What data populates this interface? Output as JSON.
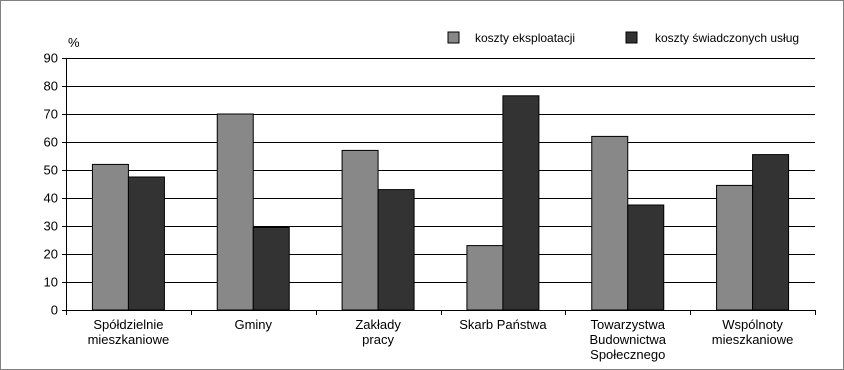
{
  "chart_data": {
    "type": "bar",
    "ylabel": "%",
    "ylim": [
      0,
      90
    ],
    "yticks": [
      0,
      10,
      20,
      30,
      40,
      50,
      60,
      70,
      80,
      90
    ],
    "grid": true,
    "legend_position": "top-right",
    "categories": [
      [
        "Spółdzielnie",
        "mieszkaniowe"
      ],
      [
        "Gminy"
      ],
      [
        "Zakłady",
        "pracy"
      ],
      [
        "Skarb Państwa"
      ],
      [
        "Towarzystwa",
        "Budownictwa",
        "Społecznego"
      ],
      [
        "Wspólnoty",
        "mieszkaniowe"
      ]
    ],
    "series": [
      {
        "name": "koszty eksploatacji",
        "color": "#888888",
        "values": [
          52,
          70,
          57,
          23,
          62,
          44.5
        ]
      },
      {
        "name": "koszty świadczonych usług",
        "color": "#333333",
        "values": [
          47.5,
          29.5,
          43,
          76.5,
          37.5,
          55.5
        ]
      }
    ]
  }
}
